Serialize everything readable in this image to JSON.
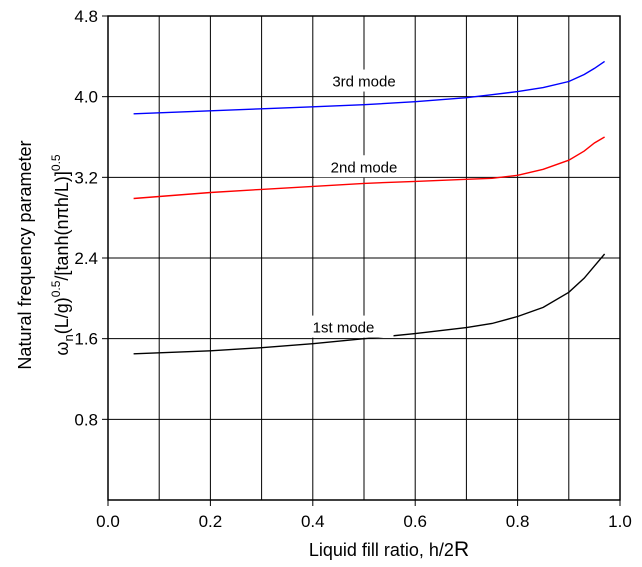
{
  "chart_data": {
    "type": "line",
    "xlabel_main": "Liquid fill ratio,  h/2",
    "xlabel_suffix": "R",
    "ylabel_line1": "Natural frequency parameter",
    "ylabel_line2": {
      "omega": "ω",
      "sub_n": "n",
      "p1": "(L/g)",
      "sup1": "0.5",
      "p2": "/[tanh(nπh/L)]",
      "sup2": "0.5"
    },
    "xlim": [
      0.0,
      1.0
    ],
    "ylim": [
      0.0,
      4.8
    ],
    "x_ticks": [
      "0.0",
      "0.2",
      "0.4",
      "0.6",
      "0.8",
      "1.0"
    ],
    "y_ticks": [
      "0.8",
      "1.6",
      "2.4",
      "3.2",
      "4.0",
      "4.8"
    ],
    "x_ticks_values": [
      0.0,
      0.2,
      0.4,
      0.6,
      0.8,
      1.0
    ],
    "y_ticks_values": [
      0.8,
      1.6,
      2.4,
      3.2,
      4.0,
      4.8
    ],
    "x_grid": [
      0.1,
      0.2,
      0.3,
      0.4,
      0.5,
      0.6,
      0.7,
      0.8,
      0.9
    ],
    "y_grid": [
      0.8,
      1.6,
      2.4,
      3.2,
      4.0
    ],
    "grid": true,
    "series": [
      {
        "name": "1st mode",
        "color": "#000000",
        "x": [
          0.05,
          0.1,
          0.2,
          0.3,
          0.4,
          0.5,
          0.6,
          0.7,
          0.75,
          0.8,
          0.85,
          0.9,
          0.93,
          0.95,
          0.97
        ],
        "y": [
          1.45,
          1.46,
          1.48,
          1.51,
          1.55,
          1.6,
          1.65,
          1.71,
          1.75,
          1.82,
          1.91,
          2.06,
          2.2,
          2.32,
          2.44
        ],
        "label_at": [
          0.46,
          1.71
        ]
      },
      {
        "name": "2nd mode",
        "color": "#ff0000",
        "x": [
          0.05,
          0.1,
          0.2,
          0.3,
          0.4,
          0.5,
          0.6,
          0.7,
          0.75,
          0.8,
          0.85,
          0.9,
          0.93,
          0.95,
          0.97
        ],
        "y": [
          2.99,
          3.01,
          3.05,
          3.08,
          3.11,
          3.14,
          3.16,
          3.18,
          3.19,
          3.22,
          3.28,
          3.37,
          3.46,
          3.54,
          3.6
        ],
        "label_at": [
          0.5,
          3.3
        ]
      },
      {
        "name": "3rd mode",
        "color": "#0000ff",
        "x": [
          0.05,
          0.1,
          0.2,
          0.3,
          0.4,
          0.5,
          0.6,
          0.7,
          0.75,
          0.8,
          0.85,
          0.9,
          0.93,
          0.95,
          0.97
        ],
        "y": [
          3.83,
          3.84,
          3.86,
          3.88,
          3.9,
          3.92,
          3.95,
          3.99,
          4.02,
          4.05,
          4.09,
          4.15,
          4.22,
          4.28,
          4.35
        ],
        "label_at": [
          0.5,
          4.15
        ]
      }
    ]
  }
}
